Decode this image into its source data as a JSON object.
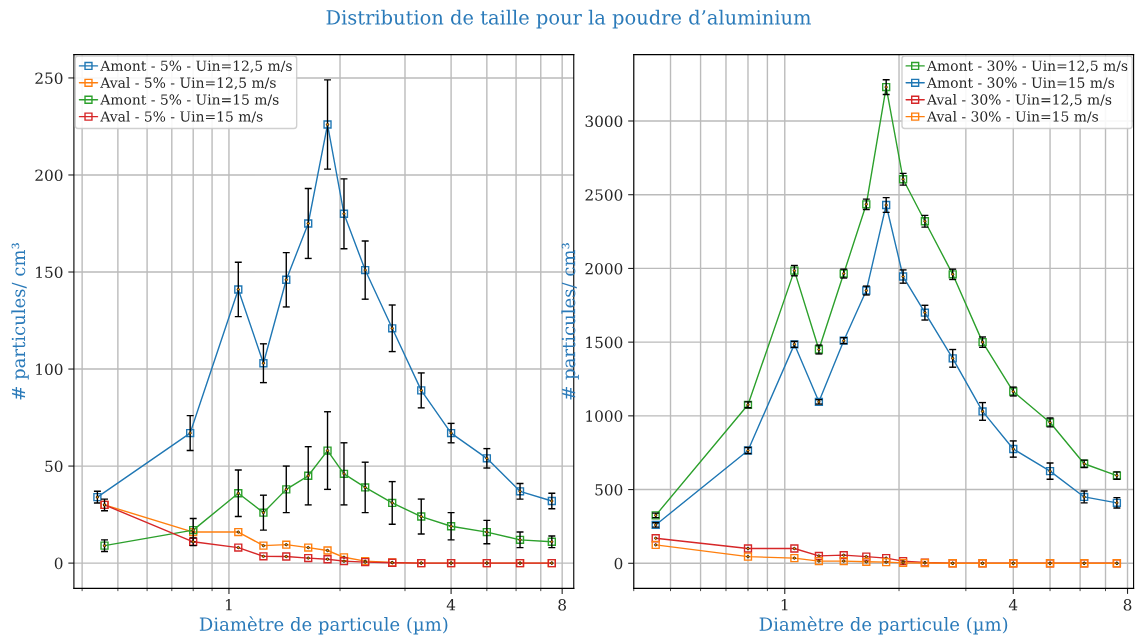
{
  "chart_data": [
    {
      "type": "line",
      "title": "Distribution de taille pour la poudre d’aluminium",
      "xlabel": "Diamètre de particule (µm)",
      "ylabel": "# particules/ cm³",
      "log": "x",
      "xlim": [
        0.38,
        8.6
      ],
      "ylim": [
        -13,
        262
      ],
      "xticks": [
        1,
        4,
        8
      ],
      "yticks": [
        0,
        50,
        100,
        150,
        200,
        250
      ],
      "grid": true,
      "legend": "top left",
      "marker": "square",
      "line_style": "solid",
      "series": [
        {
          "name": "Amont - 5% - Uin=12,5 m/s",
          "color": "#1f77b4",
          "x": [
            0.44,
            0.785,
            1.06,
            1.24,
            1.43,
            1.64,
            1.85,
            2.05,
            2.34,
            2.77,
            3.32,
            4.0,
            5.0,
            6.15,
            7.5
          ],
          "values": [
            34,
            67,
            141,
            103,
            146,
            175,
            226,
            180,
            151,
            121,
            89,
            67,
            54,
            37,
            32
          ],
          "errors": [
            3,
            9,
            14,
            10,
            14,
            18,
            23,
            18,
            15,
            12,
            9,
            5,
            5,
            4,
            4
          ]
        },
        {
          "name": "Aval - 5% - Uin=12,5 m/s",
          "color": "#ff7f0e",
          "x": [
            0.46,
            0.8,
            1.06,
            1.24,
            1.43,
            1.64,
            1.85,
            2.05,
            2.34,
            2.77,
            3.32,
            4.0,
            5.0,
            6.15,
            7.5
          ],
          "values": [
            30,
            16,
            16,
            9,
            9.5,
            8,
            6.5,
            3,
            1,
            0.3,
            0,
            0,
            0,
            0,
            0
          ]
        },
        {
          "name": "Amont - 5% - Uin=15 m/s",
          "color": "#2ca02c",
          "x": [
            0.46,
            0.8,
            1.06,
            1.24,
            1.43,
            1.64,
            1.85,
            2.05,
            2.34,
            2.77,
            3.32,
            4.0,
            5.0,
            6.15,
            7.5
          ],
          "values": [
            9,
            17,
            36,
            26,
            38,
            45,
            58,
            46,
            39,
            31,
            24,
            19,
            16,
            12,
            11
          ],
          "errors": [
            3,
            6,
            12,
            9,
            12,
            15,
            20,
            16,
            13,
            11,
            9,
            7,
            6,
            4,
            3
          ]
        },
        {
          "name": "Aval - 5% - Uin=15 m/s",
          "color": "#d62728",
          "x": [
            0.46,
            0.8,
            1.06,
            1.24,
            1.43,
            1.64,
            1.85,
            2.05,
            2.34,
            2.77,
            3.32,
            4.0,
            5.0,
            6.15,
            7.5
          ],
          "values": [
            30,
            11,
            8,
            3.5,
            3.4,
            2.6,
            2,
            1,
            0.5,
            0.2,
            0,
            0,
            0,
            0,
            0
          ],
          "errors": [
            3,
            2,
            null,
            null,
            null,
            null,
            null,
            null,
            null,
            null,
            null,
            null,
            null,
            null,
            null
          ]
        }
      ]
    },
    {
      "type": "line",
      "xlabel": "Diamètre de particule (µm)",
      "ylabel": "# particules/ cm³",
      "log": "x",
      "xlim": [
        0.4,
        8.3
      ],
      "ylim": [
        -170,
        3450
      ],
      "xticks": [
        1,
        4,
        8
      ],
      "yticks": [
        0,
        500,
        1000,
        1500,
        2000,
        2500,
        3000
      ],
      "grid": true,
      "legend": "top right",
      "marker": "square",
      "line_style": "solid",
      "series": [
        {
          "name": "Amont - 30% - Uin=12,5 m/s",
          "color": "#2ca02c",
          "x": [
            0.457,
            0.8,
            1.06,
            1.23,
            1.43,
            1.64,
            1.85,
            2.05,
            2.34,
            2.77,
            3.32,
            4.0,
            5.0,
            6.15,
            7.5
          ],
          "values": [
            325,
            1075,
            1985,
            1450,
            1965,
            2435,
            3230,
            2605,
            2320,
            1960,
            1500,
            1165,
            955,
            675,
            595
          ],
          "errors": [
            15,
            20,
            35,
            30,
            30,
            35,
            50,
            40,
            40,
            35,
            35,
            30,
            30,
            25,
            25
          ]
        },
        {
          "name": "Amont - 30% - Uin=15 m/s",
          "color": "#1f77b4",
          "x": [
            0.457,
            0.8,
            1.06,
            1.23,
            1.43,
            1.64,
            1.85,
            2.05,
            2.34,
            2.77,
            3.32,
            4.0,
            5.0,
            6.15,
            7.5
          ],
          "values": [
            260,
            765,
            1485,
            1095,
            1510,
            1850,
            2430,
            1945,
            1700,
            1390,
            1030,
            775,
            625,
            450,
            410
          ],
          "errors": [
            15,
            20,
            20,
            15,
            20,
            30,
            50,
            45,
            50,
            60,
            60,
            55,
            55,
            40,
            35
          ]
        },
        {
          "name": "Aval - 30% - Uin=12,5 m/s",
          "color": "#d62728",
          "x": [
            0.457,
            0.8,
            1.06,
            1.23,
            1.43,
            1.64,
            1.85,
            2.05,
            2.34,
            2.77,
            3.32,
            4.0,
            5.0,
            6.15,
            7.5
          ],
          "values": [
            170,
            100,
            100,
            50,
            55,
            45,
            35,
            15,
            5,
            0,
            0,
            0,
            0,
            0,
            0
          ]
        },
        {
          "name": "Aval - 30% - Uin=15 m/s",
          "color": "#ff7f0e",
          "x": [
            0.457,
            0.8,
            1.06,
            1.23,
            1.43,
            1.64,
            1.85,
            2.05,
            2.34,
            2.77,
            3.32,
            4.0,
            5.0,
            6.15,
            7.5
          ],
          "values": [
            125,
            45,
            35,
            15,
            15,
            10,
            8,
            3,
            2,
            0,
            0,
            0,
            0,
            0,
            0
          ]
        }
      ]
    }
  ]
}
